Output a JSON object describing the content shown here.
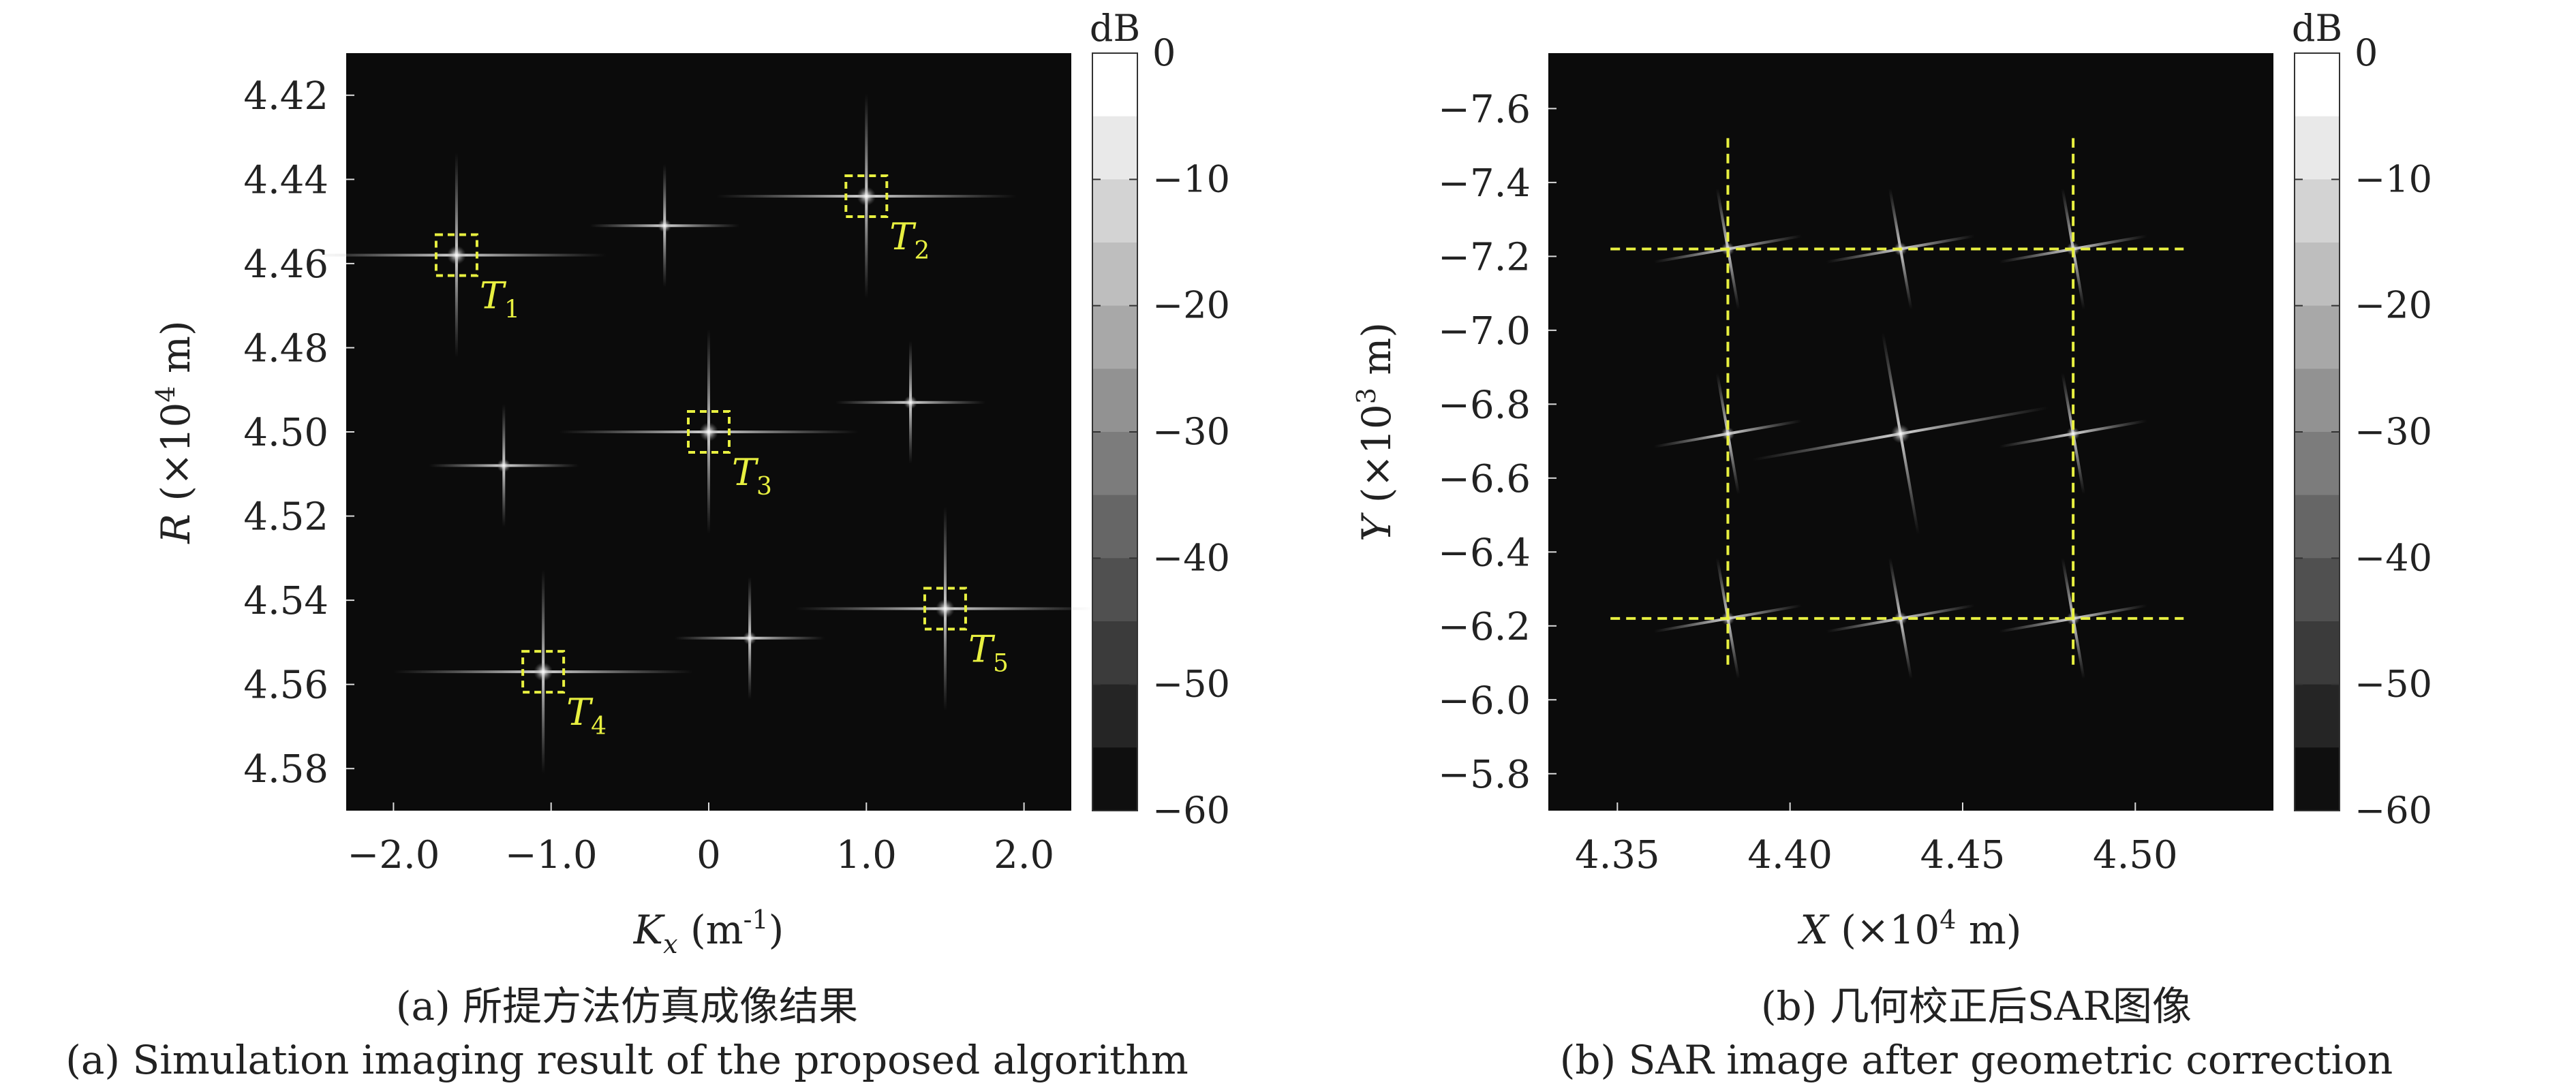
{
  "figure": {
    "captions": {
      "a_cn": "(a) 所提方法仿真成像结果",
      "a_en": "(a) Simulation imaging result of the proposed algorithm",
      "b_cn": "(b) 几何校正后SAR图像",
      "b_en": "(b) SAR image after geometric correction"
    }
  },
  "chart_data": [
    {
      "type": "heatmap",
      "panel": "a",
      "background": "#0b0b0b",
      "xlabel": {
        "main": "K",
        "sub": "x",
        "unit": " (m",
        "sup": "-1",
        "close": ")"
      },
      "ylabel": {
        "main": "R",
        "unit": " (×10",
        "sup": "4",
        "close": " m)"
      },
      "xlim": [
        -2.3,
        2.3
      ],
      "ylim": [
        4.41,
        4.59
      ],
      "y_inverted": true,
      "xticks": [
        -2.0,
        -1.0,
        0,
        1.0,
        2.0
      ],
      "xtick_labels": [
        "−2.0",
        "−1.0",
        "0",
        "1.0",
        "2.0"
      ],
      "yticks": [
        4.42,
        4.44,
        4.46,
        4.48,
        4.5,
        4.52,
        4.54,
        4.56,
        4.58
      ],
      "ytick_labels": [
        "4.42",
        "4.44",
        "4.46",
        "4.48",
        "4.50",
        "4.52",
        "4.54",
        "4.56",
        "4.58"
      ],
      "points": [
        {
          "x": -1.6,
          "y": 4.458,
          "label": "T",
          "sub": "1",
          "boxed": true
        },
        {
          "x": 1.0,
          "y": 4.444,
          "label": "T",
          "sub": "2",
          "boxed": true
        },
        {
          "x": 0.0,
          "y": 4.5,
          "label": "T",
          "sub": "3",
          "boxed": true
        },
        {
          "x": -1.05,
          "y": 4.557,
          "label": "T",
          "sub": "4",
          "boxed": true
        },
        {
          "x": 1.5,
          "y": 4.542,
          "label": "T",
          "sub": "5",
          "boxed": true
        },
        {
          "x": -0.28,
          "y": 4.451,
          "boxed": false
        },
        {
          "x": 1.28,
          "y": 4.493,
          "boxed": false
        },
        {
          "x": -1.3,
          "y": 4.508,
          "boxed": false
        },
        {
          "x": 0.26,
          "y": 4.549,
          "boxed": false
        }
      ],
      "colorbar": {
        "unit": "dB",
        "min": -60,
        "max": 0,
        "ticks": [
          0,
          -10,
          -20,
          -30,
          -40,
          -50,
          -60
        ],
        "tick_labels": [
          "0",
          "−10",
          "−20",
          "−30",
          "−40",
          "−50",
          "−60"
        ]
      }
    },
    {
      "type": "heatmap",
      "panel": "b",
      "background": "#0b0b0b",
      "xlabel": {
        "main": "X",
        "unit": " (×10",
        "sup": "4",
        "close": " m)"
      },
      "ylabel": {
        "main": "Y",
        "unit": " (×10",
        "sup": "3",
        "close": " m)"
      },
      "xlim": [
        4.33,
        4.54
      ],
      "ylim": [
        -7.75,
        -5.7
      ],
      "xticks": [
        4.35,
        4.4,
        4.45,
        4.5
      ],
      "xtick_labels": [
        "4.35",
        "4.40",
        "4.45",
        "4.50"
      ],
      "yticks": [
        -7.6,
        -7.4,
        -7.2,
        -7.0,
        -6.8,
        -6.6,
        -6.4,
        -6.2,
        -6.0,
        -5.8
      ],
      "ytick_labels": [
        "−7.6",
        "−7.4",
        "−7.2",
        "−7.0",
        "−6.8",
        "−6.6",
        "−6.4",
        "−6.2",
        "−6.0",
        "−5.8"
      ],
      "points": [
        {
          "x": 4.382,
          "y": -7.22
        },
        {
          "x": 4.432,
          "y": -7.22
        },
        {
          "x": 4.482,
          "y": -7.22
        },
        {
          "x": 4.382,
          "y": -6.72
        },
        {
          "x": 4.432,
          "y": -6.72
        },
        {
          "x": 4.482,
          "y": -6.72
        },
        {
          "x": 4.382,
          "y": -6.22
        },
        {
          "x": 4.432,
          "y": -6.22
        },
        {
          "x": 4.482,
          "y": -6.22
        }
      ],
      "guide_lines": {
        "color": "#e8f040",
        "vertical_x": [
          4.382,
          4.482
        ],
        "vertical_span": [
          -7.52,
          -6.08
        ],
        "horizontal_y": [
          -7.22,
          -6.22
        ],
        "horizontal_span": [
          4.348,
          4.514
        ]
      },
      "colorbar": {
        "unit": "dB",
        "min": -60,
        "max": 0,
        "ticks": [
          0,
          -10,
          -20,
          -30,
          -40,
          -50,
          -60
        ],
        "tick_labels": [
          "0",
          "−10",
          "−20",
          "−30",
          "−40",
          "−50",
          "−60"
        ]
      }
    }
  ]
}
